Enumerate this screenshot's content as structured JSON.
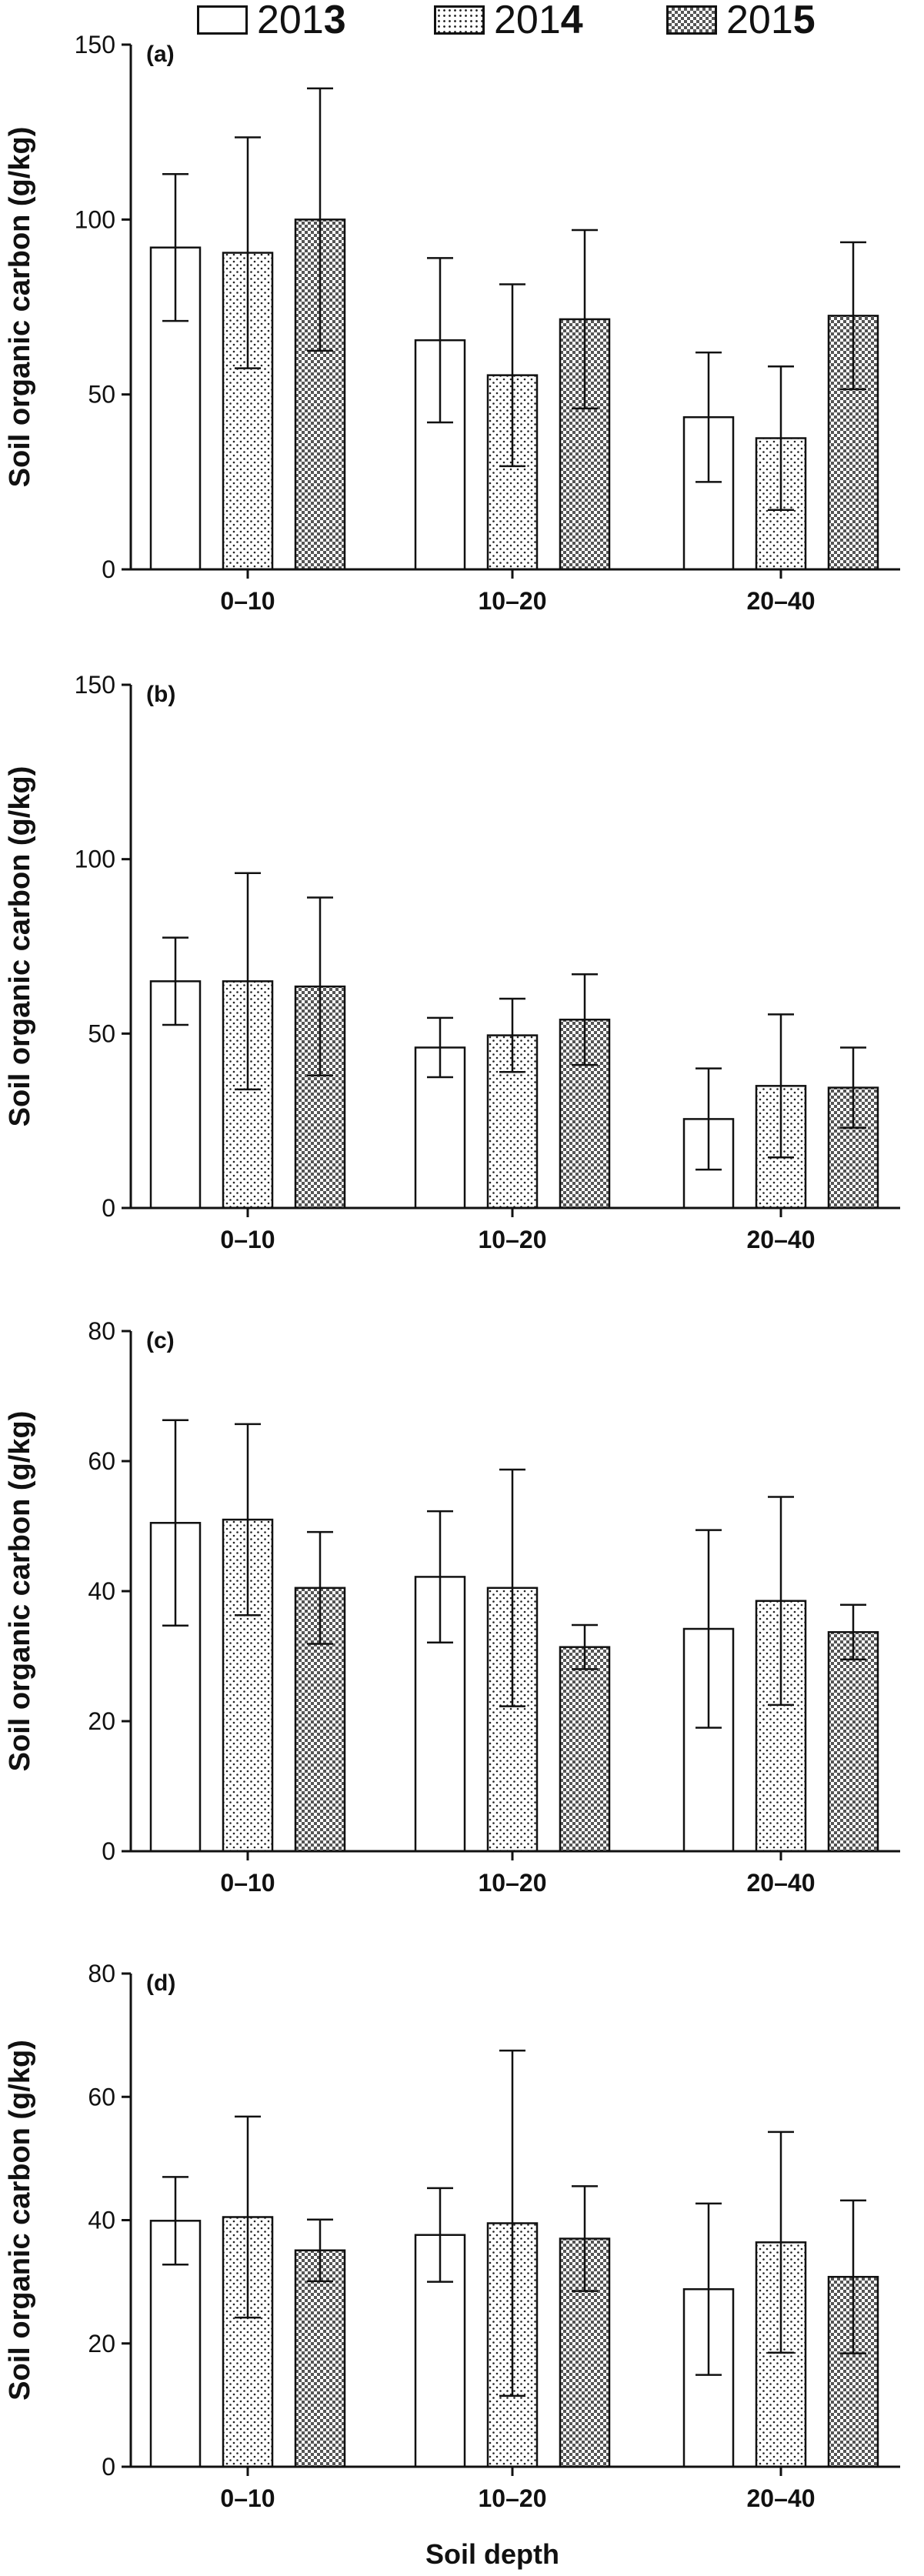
{
  "legend": [
    {
      "prefix": "201",
      "suffix": "3",
      "pattern": "white"
    },
    {
      "prefix": "201",
      "suffix": "4",
      "pattern": "dots"
    },
    {
      "prefix": "201",
      "suffix": "5",
      "pattern": "checker"
    }
  ],
  "xlabel": "Soil depth",
  "chart_data": [
    {
      "type": "bar",
      "panel_label": "(a)",
      "ylabel": "Soil organic carbon (g/kg)",
      "categories": [
        "0–10",
        "10–20",
        "20–40"
      ],
      "ylim": [
        0,
        150
      ],
      "yticks": [
        0,
        50,
        100,
        150
      ],
      "series": [
        {
          "name": "2013",
          "values": [
            92,
            65.5,
            43.5
          ],
          "errors": [
            21,
            23.5,
            18.5
          ]
        },
        {
          "name": "2014",
          "values": [
            90.5,
            55.5,
            37.5
          ],
          "errors": [
            33,
            26,
            20.5
          ]
        },
        {
          "name": "2015",
          "values": [
            100,
            71.5,
            72.5
          ],
          "errors": [
            37.5,
            25.5,
            21
          ]
        }
      ]
    },
    {
      "type": "bar",
      "panel_label": "(b)",
      "ylabel": "Soil organic carbon (g/kg)",
      "categories": [
        "0–10",
        "10–20",
        "20–40"
      ],
      "ylim": [
        0,
        150
      ],
      "yticks": [
        0,
        50,
        100,
        150
      ],
      "series": [
        {
          "name": "2013",
          "values": [
            65,
            46,
            25.5
          ],
          "errors": [
            12.5,
            8.5,
            14.5
          ]
        },
        {
          "name": "2014",
          "values": [
            65,
            49.5,
            35
          ],
          "errors": [
            31,
            10.5,
            20.5
          ]
        },
        {
          "name": "2015",
          "values": [
            63.5,
            54,
            34.5
          ],
          "errors": [
            25.5,
            13,
            11.5
          ]
        }
      ]
    },
    {
      "type": "bar",
      "panel_label": "(c)",
      "ylabel": "Soil organic carbon (g/kg)",
      "categories": [
        "0–10",
        "10–20",
        "20–40"
      ],
      "ylim": [
        0,
        80
      ],
      "yticks": [
        0,
        20,
        40,
        60,
        80
      ],
      "series": [
        {
          "name": "2013",
          "values": [
            50.5,
            42.2,
            34.2
          ],
          "errors": [
            15.8,
            10.1,
            15.2
          ]
        },
        {
          "name": "2014",
          "values": [
            51,
            40.5,
            38.5
          ],
          "errors": [
            14.7,
            18.2,
            16
          ]
        },
        {
          "name": "2015",
          "values": [
            40.5,
            31.4,
            33.7
          ],
          "errors": [
            8.6,
            3.4,
            4.2
          ]
        }
      ]
    },
    {
      "type": "bar",
      "panel_label": "(d)",
      "ylabel": "Soil organic carbon (g/kg)",
      "categories": [
        "0–10",
        "10–20",
        "20–40"
      ],
      "ylim": [
        0,
        80
      ],
      "yticks": [
        0,
        20,
        40,
        60,
        80
      ],
      "series": [
        {
          "name": "2013",
          "values": [
            39.9,
            37.6,
            28.8
          ],
          "errors": [
            7.1,
            7.6,
            13.9
          ]
        },
        {
          "name": "2014",
          "values": [
            40.5,
            39.5,
            36.4
          ],
          "errors": [
            16.3,
            28,
            17.9
          ]
        },
        {
          "name": "2015",
          "values": [
            35.1,
            37,
            30.8
          ],
          "errors": [
            5,
            8.5,
            12.4
          ]
        }
      ]
    }
  ]
}
